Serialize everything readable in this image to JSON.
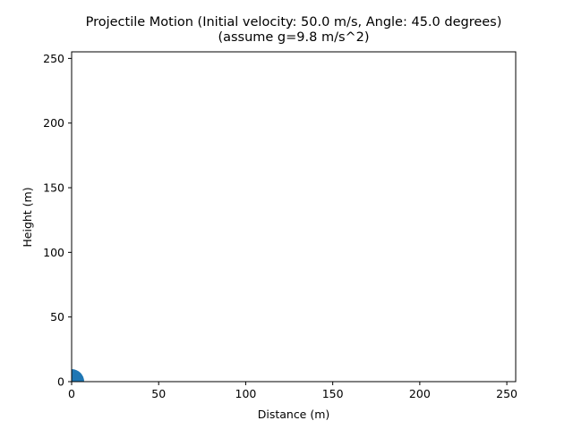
{
  "chart_data": {
    "type": "scatter",
    "title": "Projectile Motion (Initial velocity: 50.0 m/s, Angle: 45.0 degrees)",
    "subtitle": "(assume g=9.8 m/s^2)",
    "xlabel": "Distance (m)",
    "ylabel": "Height (m)",
    "xlim": [
      0,
      255.1
    ],
    "ylim": [
      0,
      255.1
    ],
    "x_ticks": [
      0,
      50,
      100,
      150,
      200,
      250
    ],
    "y_ticks": [
      0,
      50,
      100,
      150,
      200,
      250
    ],
    "grid": false,
    "series": [
      {
        "name": "projectile",
        "color": "#1f77b4",
        "points": [
          {
            "x": 0,
            "y": 0
          }
        ],
        "marker": "circle",
        "marker_radius_px": 14
      }
    ]
  },
  "title": {
    "line1": "Projectile Motion (Initial velocity: 50.0 m/s, Angle: 45.0 degrees)",
    "line2": "(assume g=9.8 m/s^2)"
  },
  "axes": {
    "xlabel": "Distance (m)",
    "ylabel": "Height (m)",
    "x_tick_labels": [
      "0",
      "50",
      "100",
      "150",
      "200",
      "250"
    ],
    "y_tick_labels": [
      "0",
      "50",
      "100",
      "150",
      "200",
      "250"
    ]
  }
}
